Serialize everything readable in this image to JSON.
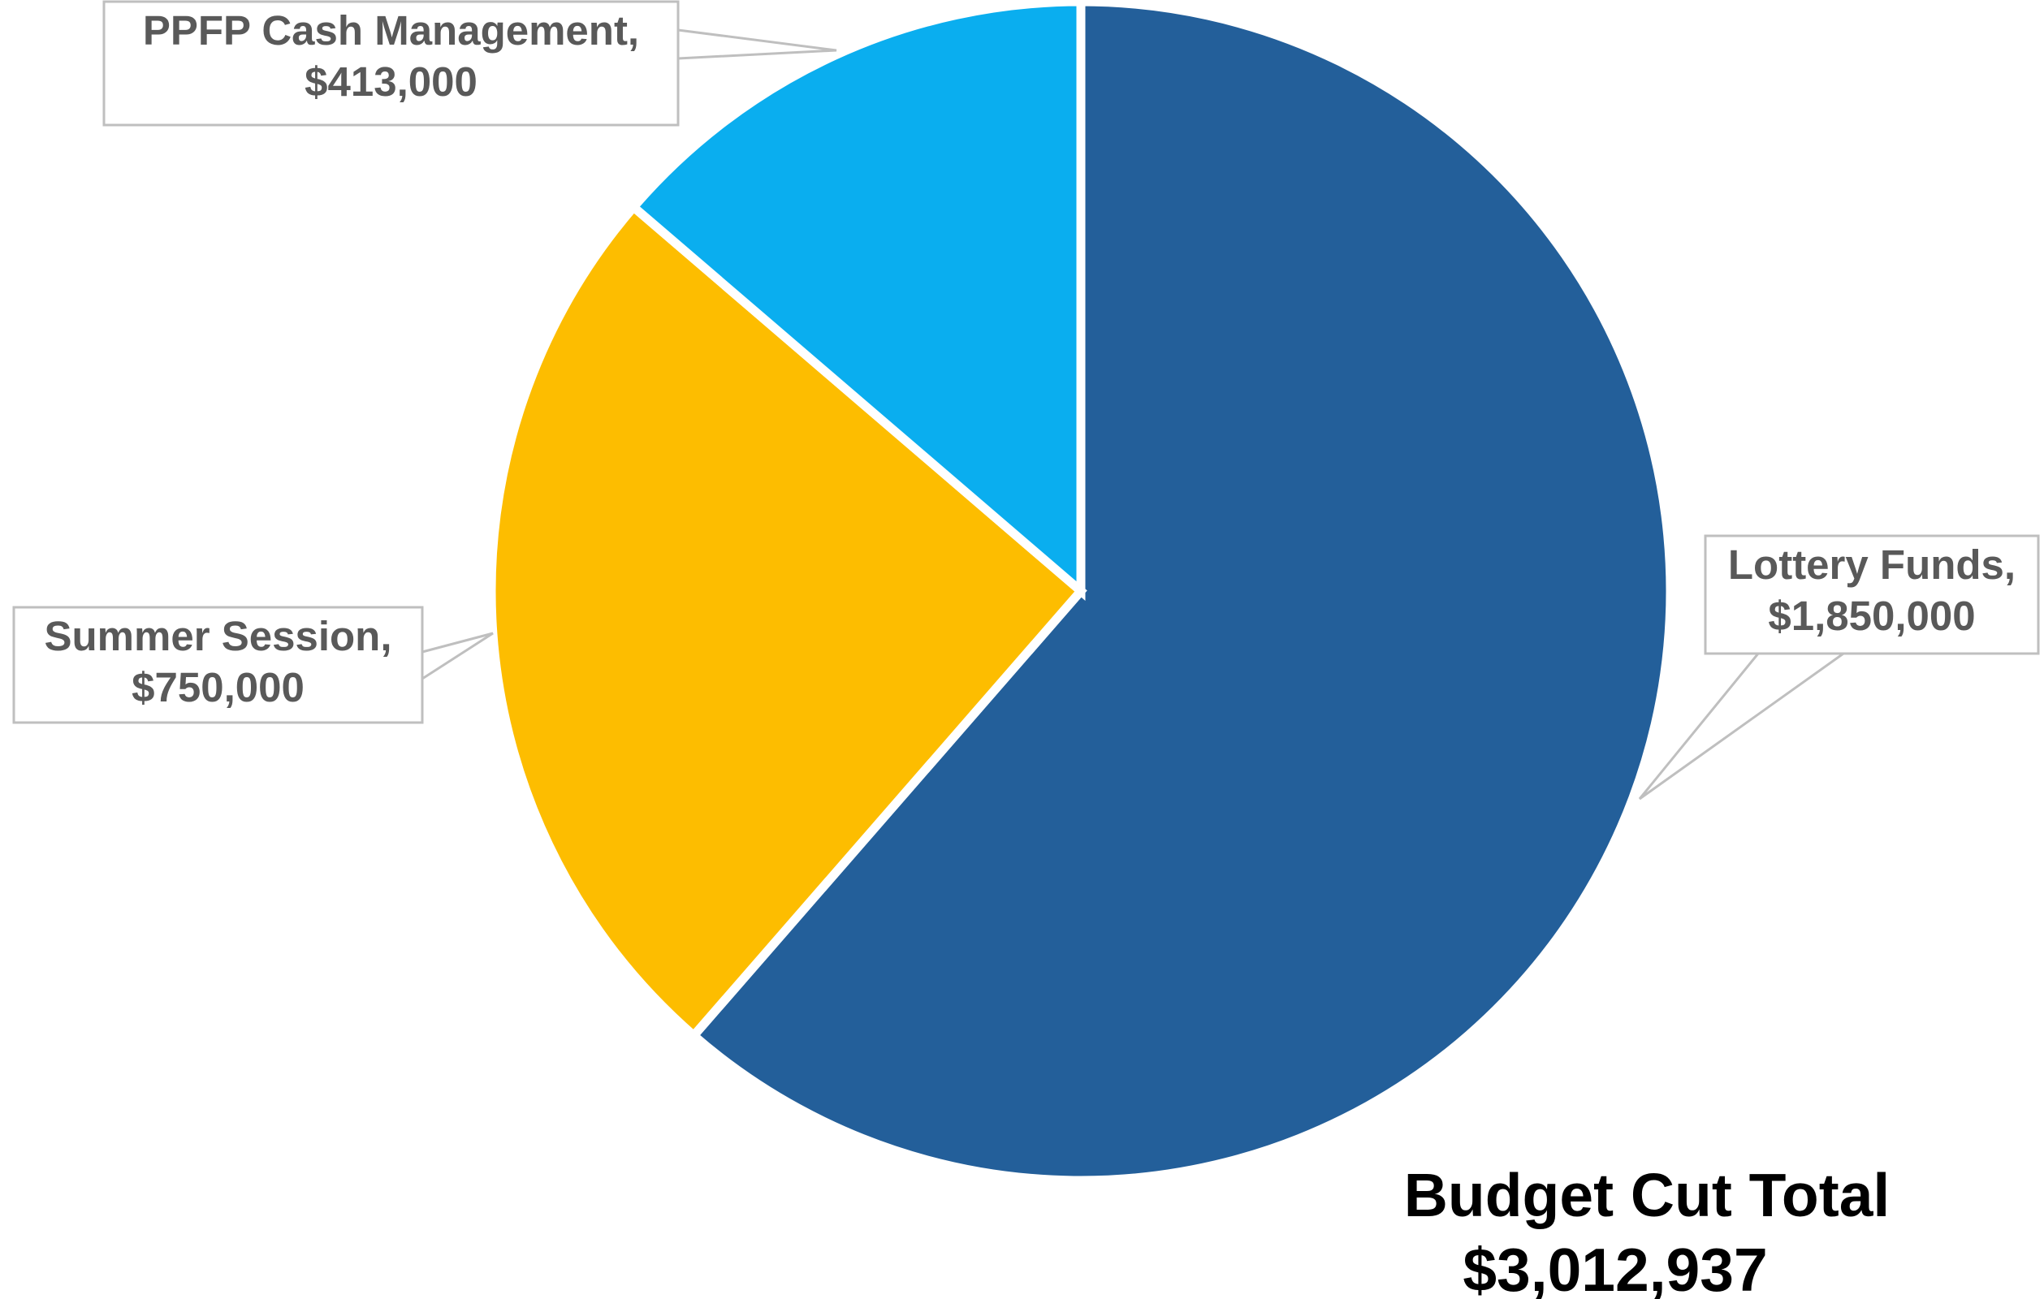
{
  "chart_data": {
    "type": "pie",
    "slices": [
      {
        "name": "Lottery Funds",
        "value": 1850000,
        "label_name": "Lottery Funds,",
        "label_value": "$1,850,000",
        "color": "#235F9A"
      },
      {
        "name": "Summer Session",
        "value": 750000,
        "label_name": "Summer Session,",
        "label_value": "$750,000",
        "color": "#FDBD00"
      },
      {
        "name": "PPFP Cash Management",
        "value": 413000,
        "label_name": "PPFP Cash Management,",
        "label_value": "$413,000",
        "color": "#0AAEEF"
      }
    ],
    "total_title": "Budget Cut Total",
    "total_value": "$3,012,937"
  }
}
